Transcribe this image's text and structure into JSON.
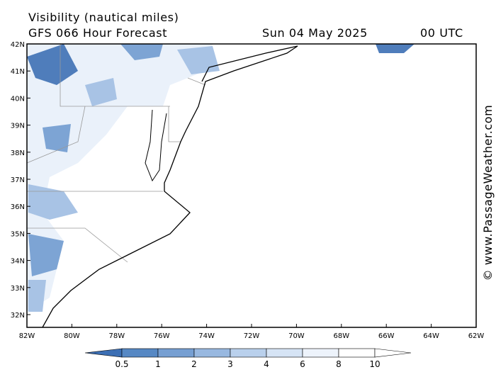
{
  "header": {
    "title": "Visibility (nautical miles)",
    "subtitle": "GFS 066 Hour Forecast",
    "date": "Sun 04 May 2025",
    "time": "00 UTC"
  },
  "map": {
    "lat_labels": [
      "42N",
      "41N",
      "40N",
      "39N",
      "38N",
      "37N",
      "36N",
      "35N",
      "34N",
      "33N",
      "32N"
    ],
    "lon_labels": [
      "82W",
      "80W",
      "78W",
      "76W",
      "74W",
      "72W",
      "70W",
      "68W",
      "66W",
      "64W",
      "62W"
    ]
  },
  "colorbar": {
    "labels": [
      0.5,
      1,
      2,
      3,
      4,
      6,
      8,
      10
    ]
  },
  "watermark": "© www.PassageWeather.com"
}
